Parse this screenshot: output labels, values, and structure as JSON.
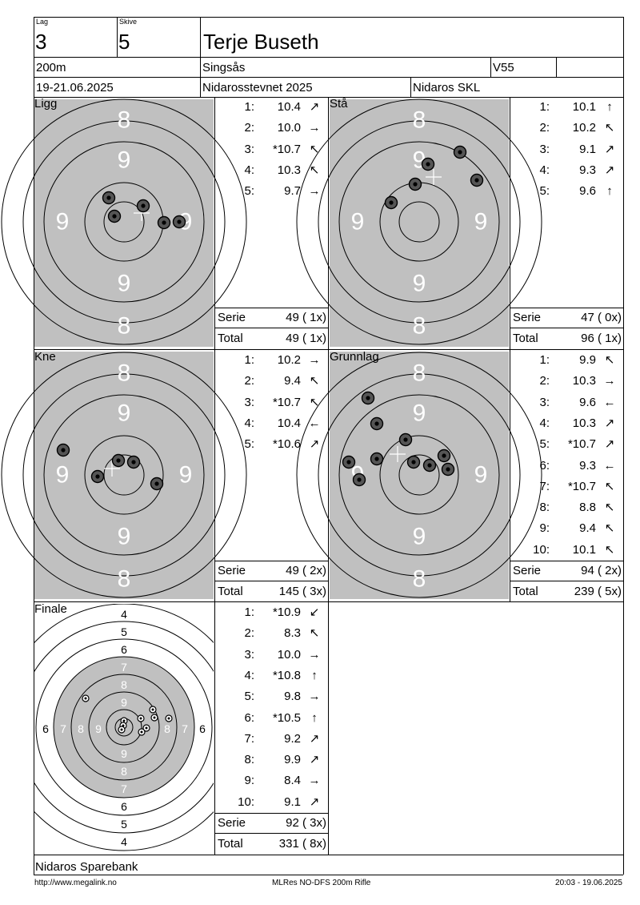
{
  "header": {
    "lag_label": "Lag",
    "lag_value": "3",
    "skive_label": "Skive",
    "skive_value": "5",
    "shooter_name": "Terje Buseth",
    "distance": "200m",
    "club": "Singsås",
    "class": "V55",
    "date": "19-21.06.2025",
    "event": "Nidarosstevnet 2025",
    "organizer": "Nidaros SKL"
  },
  "stages": [
    {
      "title": "Ligg",
      "shots": [
        {
          "no": "1:",
          "value": "10.4",
          "arrow": "↗"
        },
        {
          "no": "2:",
          "value": "10.0",
          "arrow": "→"
        },
        {
          "no": "3:",
          "value": "*10.7",
          "arrow": "↖"
        },
        {
          "no": "4:",
          "value": "10.3",
          "arrow": "↖"
        },
        {
          "no": "5:",
          "value": "9.7",
          "arrow": "→"
        }
      ],
      "serie_label": "Serie",
      "serie_value": "49 ( 1x)",
      "total_label": "Total",
      "total_value": "49 ( 1x)",
      "target_labels": {
        "top_outer": "8",
        "top_inner": "9",
        "left": "9",
        "right": "9",
        "bottom_inner": "9",
        "bottom_outer": "8"
      }
    },
    {
      "title": "Stå",
      "shots": [
        {
          "no": "1:",
          "value": "10.1",
          "arrow": "↑"
        },
        {
          "no": "2:",
          "value": "10.2",
          "arrow": "↖"
        },
        {
          "no": "3:",
          "value": "9.1",
          "arrow": "↗"
        },
        {
          "no": "4:",
          "value": "9.3",
          "arrow": "↗"
        },
        {
          "no": "5:",
          "value": "9.6",
          "arrow": "↑"
        }
      ],
      "serie_label": "Serie",
      "serie_value": "47 ( 0x)",
      "total_label": "Total",
      "total_value": "96 ( 1x)",
      "target_labels": {
        "top_outer": "8",
        "top_inner": "9",
        "left": "9",
        "right": "9",
        "bottom_inner": "9",
        "bottom_outer": "8"
      }
    },
    {
      "title": "Kne",
      "shots": [
        {
          "no": "1:",
          "value": "10.2",
          "arrow": "→"
        },
        {
          "no": "2:",
          "value": "9.4",
          "arrow": "↖"
        },
        {
          "no": "3:",
          "value": "*10.7",
          "arrow": "↖"
        },
        {
          "no": "4:",
          "value": "10.4",
          "arrow": "←"
        },
        {
          "no": "5:",
          "value": "*10.6",
          "arrow": "↗"
        }
      ],
      "serie_label": "Serie",
      "serie_value": "49 ( 2x)",
      "total_label": "Total",
      "total_value": "145 ( 3x)",
      "target_labels": {
        "top_outer": "8",
        "top_inner": "9",
        "left": "9",
        "right": "9",
        "bottom_inner": "9",
        "bottom_outer": "8"
      }
    },
    {
      "title": "Grunnlag",
      "shots": [
        {
          "no": "1:",
          "value": "9.9",
          "arrow": "↖"
        },
        {
          "no": "2:",
          "value": "10.3",
          "arrow": "→"
        },
        {
          "no": "3:",
          "value": "9.6",
          "arrow": "←"
        },
        {
          "no": "4:",
          "value": "10.3",
          "arrow": "↗"
        },
        {
          "no": "5:",
          "value": "*10.7",
          "arrow": "↗"
        },
        {
          "no": "6:",
          "value": "9.3",
          "arrow": "←"
        },
        {
          "no": "7:",
          "value": "*10.7",
          "arrow": "↖"
        },
        {
          "no": "8:",
          "value": "8.8",
          "arrow": "↖"
        },
        {
          "no": "9:",
          "value": "9.4",
          "arrow": "↖"
        },
        {
          "no": "10:",
          "value": "10.1",
          "arrow": "↖"
        }
      ],
      "serie_label": "Serie",
      "serie_value": "94 ( 2x)",
      "total_label": "Total",
      "total_value": "239 ( 5x)",
      "target_labels": {
        "top_outer": "8",
        "top_inner": "9",
        "left": "9",
        "right": "9",
        "bottom_inner": "9",
        "bottom_outer": "8"
      }
    },
    {
      "title": "Finale",
      "shots": [
        {
          "no": "1:",
          "value": "*10.9",
          "arrow": "↙"
        },
        {
          "no": "2:",
          "value": "8.3",
          "arrow": "↖"
        },
        {
          "no": "3:",
          "value": "10.0",
          "arrow": "→"
        },
        {
          "no": "4:",
          "value": "*10.8",
          "arrow": "↑"
        },
        {
          "no": "5:",
          "value": "9.8",
          "arrow": "→"
        },
        {
          "no": "6:",
          "value": "*10.5",
          "arrow": "↑"
        },
        {
          "no": "7:",
          "value": "9.2",
          "arrow": "↗"
        },
        {
          "no": "8:",
          "value": "9.9",
          "arrow": "↗"
        },
        {
          "no": "9:",
          "value": "8.4",
          "arrow": "→"
        },
        {
          "no": "10:",
          "value": "9.1",
          "arrow": "↗"
        }
      ],
      "serie_label": "Serie",
      "serie_value": "92 ( 3x)",
      "total_label": "Total",
      "total_value": "331 ( 8x)",
      "ring_labels_vertical": [
        "4",
        "5",
        "6",
        "7",
        "8",
        "9",
        "9",
        "8",
        "7",
        "6",
        "5",
        "4"
      ],
      "ring_labels_horizontal": [
        "6",
        "7",
        "8",
        "9",
        "8",
        "7",
        "6"
      ]
    }
  ],
  "footer": {
    "sponsor": "Nidaros Sparebank",
    "url": "http://www.megalink.no",
    "program": "MLRes NO-DFS 200m Rifle",
    "printed": "20:03 - 19.06.2025"
  },
  "colors": {
    "target_background": "#c0c0c0",
    "ring_line": "#000000",
    "label_white": "#ffffff"
  }
}
